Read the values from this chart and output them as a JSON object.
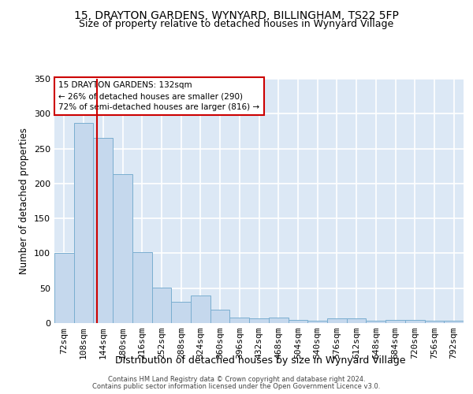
{
  "title1": "15, DRAYTON GARDENS, WYNYARD, BILLINGHAM, TS22 5FP",
  "title2": "Size of property relative to detached houses in Wynyard Village",
  "xlabel": "Distribution of detached houses by size in Wynyard Village",
  "ylabel": "Number of detached properties",
  "categories": [
    "72sqm",
    "108sqm",
    "144sqm",
    "180sqm",
    "216sqm",
    "252sqm",
    "288sqm",
    "324sqm",
    "360sqm",
    "396sqm",
    "432sqm",
    "468sqm",
    "504sqm",
    "540sqm",
    "576sqm",
    "612sqm",
    "648sqm",
    "684sqm",
    "720sqm",
    "756sqm",
    "792sqm"
  ],
  "values": [
    100,
    287,
    265,
    213,
    102,
    51,
    31,
    40,
    19,
    8,
    7,
    8,
    5,
    3,
    7,
    7,
    3,
    5,
    4,
    3,
    3
  ],
  "bar_color": "#c5d8ed",
  "bar_edge_color": "#7aaed0",
  "bar_width": 1.0,
  "vline_color": "#cc0000",
  "annotation_text": "15 DRAYTON GARDENS: 132sqm\n← 26% of detached houses are smaller (290)\n72% of semi-detached houses are larger (816) →",
  "annotation_box_color": "#ffffff",
  "annotation_box_edge": "#cc0000",
  "ylim": [
    0,
    350
  ],
  "yticks": [
    0,
    50,
    100,
    150,
    200,
    250,
    300,
    350
  ],
  "background_color": "#dce8f5",
  "grid_color": "#ffffff",
  "footer1": "Contains HM Land Registry data © Crown copyright and database right 2024.",
  "footer2": "Contains public sector information licensed under the Open Government Licence v3.0.",
  "title1_fontsize": 10,
  "title2_fontsize": 9,
  "xlabel_fontsize": 9,
  "ylabel_fontsize": 8.5,
  "tick_fontsize": 8,
  "footer_fontsize": 6
}
